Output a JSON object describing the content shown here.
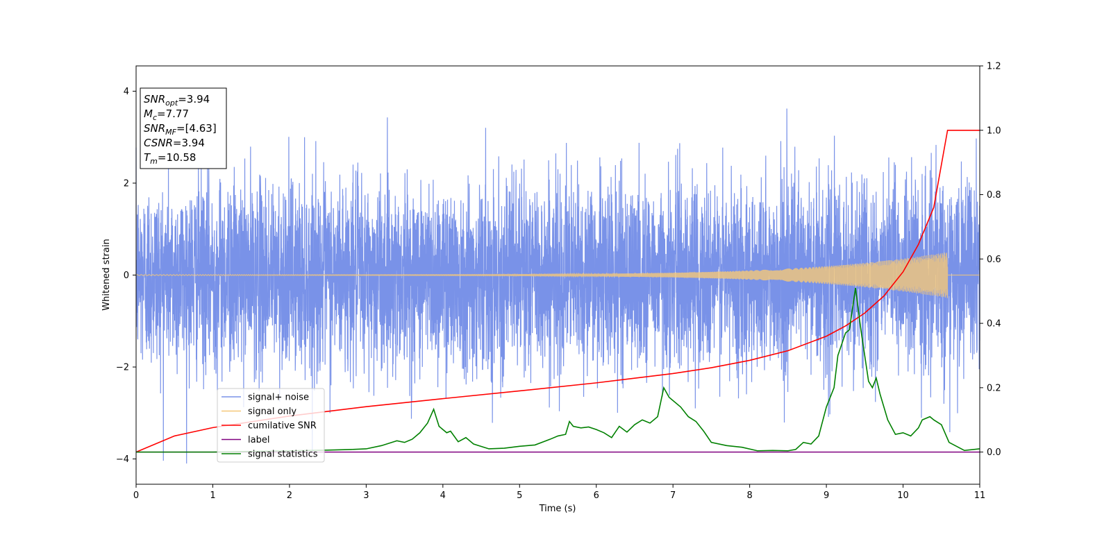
{
  "chart_data": {
    "type": "line",
    "xlabel": "Time (s)",
    "ylabel": "Whitened strain",
    "xlim": [
      0,
      11
    ],
    "ylim_left": [
      -4.55,
      4.55
    ],
    "ylim_right": [
      -0.1,
      1.2
    ],
    "x_ticks": [
      0,
      1,
      2,
      3,
      4,
      5,
      6,
      7,
      8,
      9,
      10,
      11
    ],
    "y_ticks_left": [
      -4,
      -2,
      0,
      2,
      4
    ],
    "y_ticks_right": [
      0.0,
      0.2,
      0.4,
      0.6,
      0.8,
      1.0,
      1.2
    ],
    "info_box": {
      "lines": [
        {
          "sym": "SNR",
          "sub": "opt",
          "val": "=3.94"
        },
        {
          "sym": "M",
          "sub": "c",
          "val": "=7.77"
        },
        {
          "sym": "SNR",
          "sub": "MF",
          "val": "=[4.63]"
        },
        {
          "sym": "CSNR",
          "sub": "",
          "val": "=3.94"
        },
        {
          "sym": "T",
          "sub": "m",
          "val": "=10.58"
        }
      ]
    },
    "series": [
      {
        "name": "signal+ noise",
        "color": "#7992e8",
        "axis": "left",
        "description_type": "noise",
        "x_range": [
          0,
          11
        ],
        "std": 1.0,
        "ymin": -4.1,
        "ymax": 4.15
      },
      {
        "name": "signal only",
        "color": "#f5c878",
        "axis": "left",
        "description_type": "chirp",
        "x_range": [
          0,
          10.58
        ],
        "amplitude_start": 0.01,
        "amplitude_end": 0.5
      },
      {
        "name": "cumilative SNR",
        "color": "#ff0000",
        "axis": "right",
        "x": [
          0,
          0.5,
          1,
          2,
          3,
          4,
          5,
          6,
          7,
          7.5,
          8,
          8.5,
          9,
          9.25,
          9.5,
          9.75,
          10,
          10.2,
          10.4,
          10.58,
          11
        ],
        "y": [
          0.0,
          0.05,
          0.076,
          0.112,
          0.141,
          0.166,
          0.19,
          0.215,
          0.244,
          0.262,
          0.285,
          0.315,
          0.36,
          0.392,
          0.432,
          0.485,
          0.56,
          0.645,
          0.76,
          1.0,
          1.0
        ]
      },
      {
        "name": "label",
        "color": "#800080",
        "axis": "right",
        "x": [
          0,
          11
        ],
        "y": [
          0,
          0
        ]
      },
      {
        "name": "signal statistics",
        "color": "#008000",
        "axis": "right",
        "x": [
          0,
          1.0,
          1.5,
          2.0,
          2.5,
          2.8,
          3.0,
          3.2,
          3.4,
          3.5,
          3.6,
          3.7,
          3.8,
          3.88,
          3.95,
          4.05,
          4.1,
          4.2,
          4.3,
          4.4,
          4.6,
          4.8,
          5.0,
          5.2,
          5.4,
          5.5,
          5.6,
          5.65,
          5.7,
          5.8,
          5.9,
          6.0,
          6.1,
          6.2,
          6.3,
          6.4,
          6.5,
          6.6,
          6.7,
          6.8,
          6.88,
          6.95,
          7.1,
          7.2,
          7.3,
          7.4,
          7.5,
          7.7,
          7.9,
          8.1,
          8.3,
          8.5,
          8.6,
          8.7,
          8.8,
          8.9,
          9.0,
          9.1,
          9.15,
          9.25,
          9.3,
          9.38,
          9.45,
          9.55,
          9.6,
          9.65,
          9.7,
          9.8,
          9.9,
          10.0,
          10.1,
          10.2,
          10.25,
          10.35,
          10.4,
          10.5,
          10.6,
          10.8,
          11.0
        ],
        "y": [
          0.0,
          0.0,
          0.002,
          0.004,
          0.006,
          0.008,
          0.01,
          0.02,
          0.035,
          0.03,
          0.04,
          0.06,
          0.09,
          0.133,
          0.08,
          0.06,
          0.065,
          0.032,
          0.045,
          0.025,
          0.01,
          0.012,
          0.018,
          0.022,
          0.04,
          0.05,
          0.055,
          0.095,
          0.08,
          0.075,
          0.078,
          0.07,
          0.06,
          0.045,
          0.08,
          0.062,
          0.085,
          0.1,
          0.09,
          0.11,
          0.2,
          0.17,
          0.14,
          0.11,
          0.095,
          0.065,
          0.03,
          0.02,
          0.015,
          0.004,
          0.005,
          0.004,
          0.008,
          0.03,
          0.025,
          0.05,
          0.14,
          0.2,
          0.3,
          0.37,
          0.38,
          0.51,
          0.38,
          0.22,
          0.2,
          0.23,
          0.18,
          0.1,
          0.055,
          0.06,
          0.05,
          0.075,
          0.1,
          0.11,
          0.1,
          0.085,
          0.03,
          0.005,
          0.01
        ]
      }
    ],
    "legend": {
      "placement": "lower-left"
    }
  }
}
